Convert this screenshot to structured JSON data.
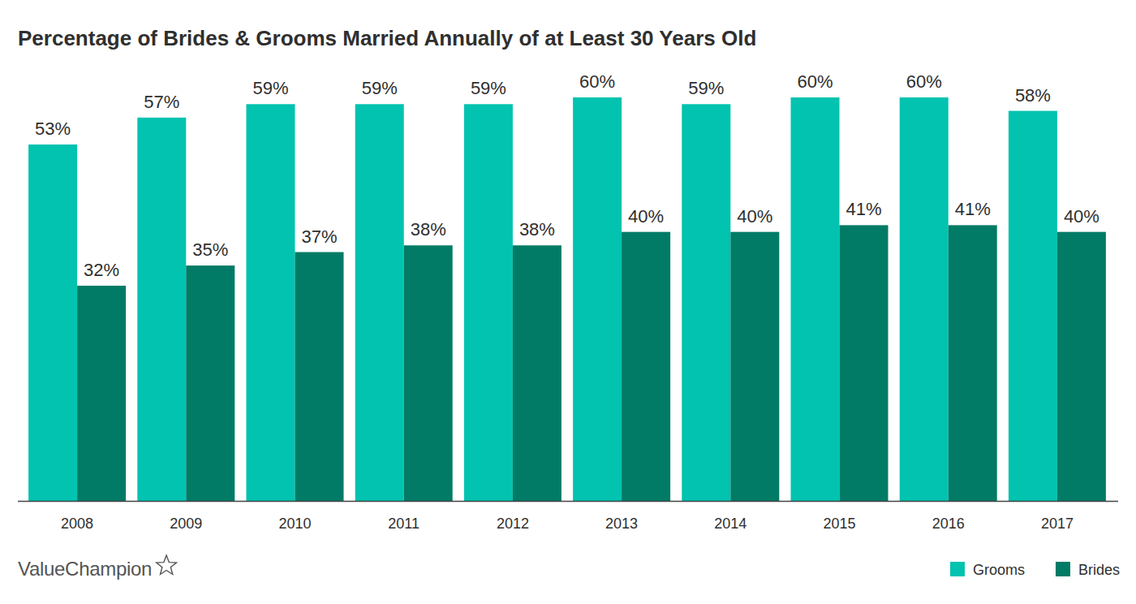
{
  "chart_data": {
    "type": "bar",
    "title": "Percentage of Brides & Grooms Married Annually of at Least 30 Years Old",
    "categories": [
      "2008",
      "2009",
      "2010",
      "2011",
      "2012",
      "2013",
      "2014",
      "2015",
      "2016",
      "2017"
    ],
    "series": [
      {
        "name": "Grooms",
        "color": "#01c3af",
        "values": [
          53,
          57,
          59,
          59,
          59,
          60,
          59,
          60,
          60,
          58
        ],
        "value_labels": [
          "53%",
          "57%",
          "59%",
          "59%",
          "59%",
          "60%",
          "59%",
          "60%",
          "60%",
          "58%"
        ]
      },
      {
        "name": "Brides",
        "color": "#017b66",
        "values": [
          32,
          35,
          37,
          38,
          38,
          40,
          40,
          41,
          41,
          40
        ],
        "value_labels": [
          "32%",
          "35%",
          "37%",
          "38%",
          "38%",
          "40%",
          "40%",
          "41%",
          "41%",
          "40%"
        ]
      }
    ],
    "ylim": [
      0,
      60
    ],
    "grid": false,
    "legend": "bottom-right",
    "data_labels": true,
    "tick_labels": "x",
    "logo": "ValueChampion"
  }
}
